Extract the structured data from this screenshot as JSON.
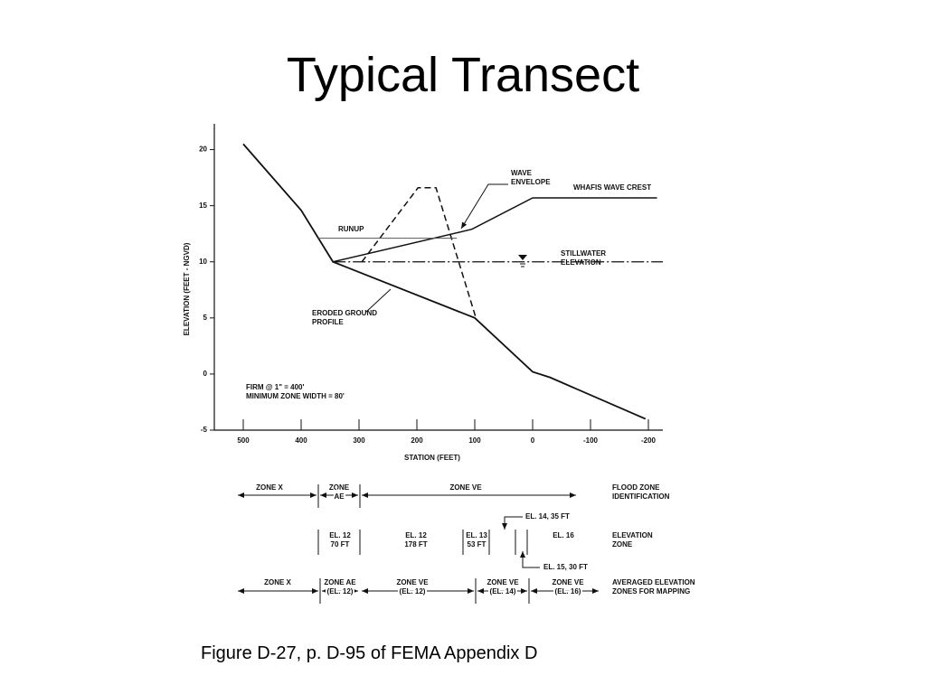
{
  "title": "Typical Transect",
  "caption": "Figure D-27, p. D-95 of FEMA Appendix D",
  "chart_data": {
    "type": "line",
    "xlabel": "STATION (FEET)",
    "ylabel": "ELEVATION (FEET - NGVD)",
    "xlim": [
      550,
      -225
    ],
    "ylim": [
      -5,
      22.3
    ],
    "xticks": [
      500,
      400,
      300,
      200,
      100,
      0,
      -100,
      -200
    ],
    "yticks": [
      -5,
      0,
      5,
      10,
      15,
      20
    ],
    "series": [
      {
        "name": "ERODED GROUND PROFILE",
        "color": "#111111",
        "x": [
          500,
          400,
          345,
          100,
          0,
          -30,
          -195
        ],
        "values": [
          20.5,
          14.6,
          10,
          5,
          0.2,
          -0.3,
          -4
        ]
      },
      {
        "name": "WHAFIS WAVE CREST",
        "color": "#111111",
        "x": [
          345,
          105,
          0,
          -215
        ],
        "values": [
          10,
          12.9,
          15.7,
          15.7
        ]
      },
      {
        "name": "WAVE ENVELOPE",
        "color": "#111111",
        "x": [
          295,
          198,
          167,
          98
        ],
        "values": [
          10,
          16.6,
          16.6,
          5
        ]
      },
      {
        "name": "RUNUP",
        "color": "#555555",
        "x": [
          370,
          131
        ],
        "values": [
          12.1,
          12.1
        ]
      },
      {
        "name": "STILLWATER ELEVATION",
        "color": "#111111",
        "x": [
          345,
          -225
        ],
        "values": [
          10,
          10
        ]
      }
    ],
    "annotations": [
      "FIRM @ 1\" = 400'",
      "MINIMUM ZONE WIDTH = 80'"
    ]
  },
  "zones": {
    "rows": [
      {
        "label": [
          "FLOOD ZONE",
          "IDENTIFICATION"
        ],
        "cells": [
          [
            "ZONE X"
          ],
          [
            "ZONE",
            "AE"
          ],
          [
            "ZONE VE"
          ]
        ]
      },
      {
        "label": [
          "ELEVATION",
          "ZONE"
        ],
        "cells": [
          [
            "EL. 12",
            "70 FT"
          ],
          [
            "EL. 12",
            "178 FT"
          ],
          [
            "EL. 13",
            "53 FT"
          ],
          [
            "EL. 16"
          ]
        ],
        "callouts": [
          "EL. 14, 35 FT",
          "EL. 15, 30 FT"
        ]
      },
      {
        "label": [
          "AVERAGED ELEVATION",
          "ZONES FOR MAPPING"
        ],
        "cells": [
          [
            "ZONE X"
          ],
          [
            "ZONE AE",
            "(EL. 12)"
          ],
          [
            "ZONE VE",
            "(EL. 12)"
          ],
          [
            "ZONE VE",
            "(EL. 14)"
          ],
          [
            "ZONE VE",
            "(EL. 16)"
          ]
        ]
      }
    ]
  }
}
